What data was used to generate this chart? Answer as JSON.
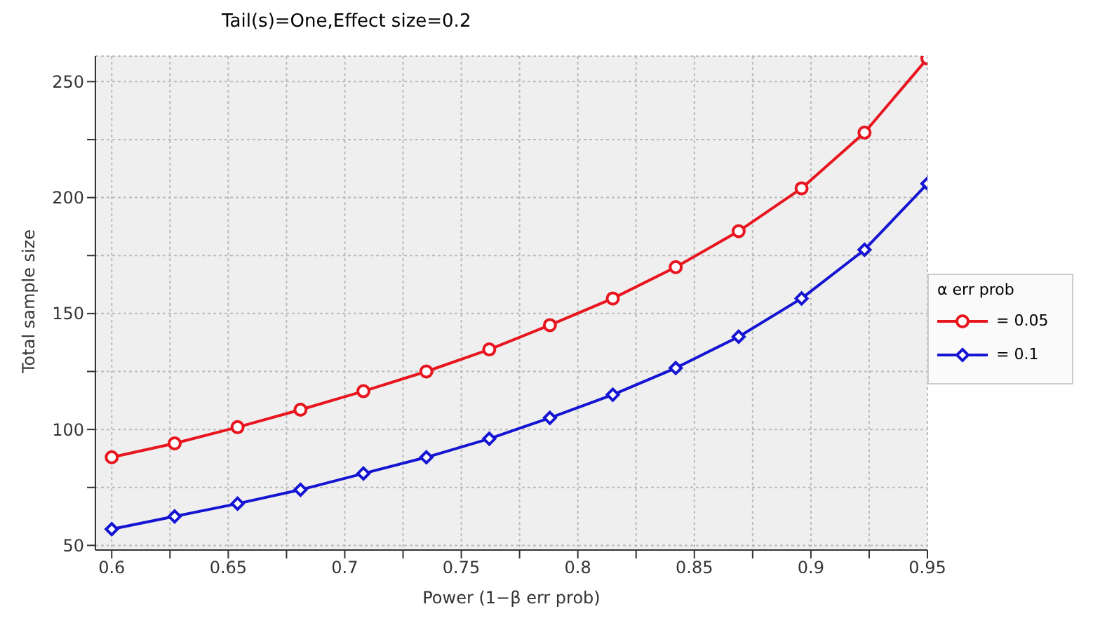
{
  "chart_data": {
    "type": "line",
    "title": "Tail(s)=One,Effect size=0.2",
    "xlabel": "Power (1−β err prob)",
    "ylabel": "Total sample size",
    "legend_title": "α err prob",
    "x": [
      0.6,
      0.627,
      0.654,
      0.681,
      0.708,
      0.735,
      0.762,
      0.788,
      0.815,
      0.842,
      0.869,
      0.896,
      0.923,
      0.95
    ],
    "series": [
      {
        "name": "= 0.05",
        "color": "#e8141e",
        "values": [
          88,
          94,
          101,
          108.5,
          116.5,
          125,
          134.5,
          145,
          156.5,
          170,
          185.5,
          204,
          228,
          260
        ]
      },
      {
        "name": "= 0.1",
        "color": "#1414d2",
        "values": [
          57,
          62.5,
          68,
          74,
          81,
          88,
          96,
          105,
          115,
          126.5,
          140,
          156.5,
          177.5,
          206
        ]
      }
    ],
    "xlim": [
      0.593,
      0.95
    ],
    "xticks": [
      0.6,
      {
        "value": 0.625,
        "label": null
      },
      0.65,
      {
        "value": 0.675,
        "label": null
      },
      0.7,
      {
        "value": 0.725,
        "label": null
      },
      0.75,
      {
        "value": 0.775,
        "label": null
      },
      0.8,
      {
        "value": 0.825,
        "label": null
      },
      0.85,
      {
        "value": 0.875,
        "label": null
      },
      0.9,
      {
        "value": 0.925,
        "label": null
      },
      0.95
    ],
    "ylim": [
      48,
      261
    ],
    "yticks": [
      50,
      {
        "value": 75,
        "label": null
      },
      100,
      {
        "value": 125,
        "label": null
      },
      150,
      {
        "value": 175,
        "label": null
      },
      200,
      {
        "value": 225,
        "label": null
      },
      250
    ],
    "grid": true,
    "legend": "right",
    "marker": [
      "circle",
      "diamond"
    ],
    "line_style": "solid"
  }
}
